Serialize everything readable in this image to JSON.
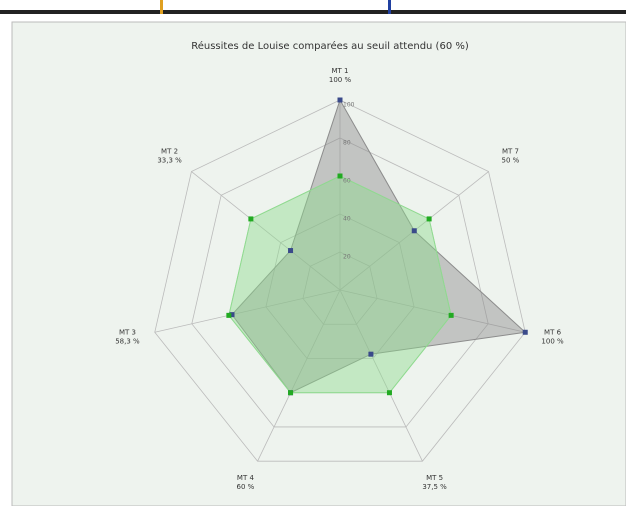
{
  "chart_data": {
    "type": "radar",
    "title": "Réussites de Louise comparées au seuil attendu (60 %)",
    "categories": [
      "MT 1",
      "MT 7",
      "MT 6",
      "MT 5",
      "MT 4",
      "MT 3",
      "MT 2"
    ],
    "series": [
      {
        "color": "#8c8c8c",
        "point_color": "#3a4a8a",
        "values": [
          100,
          50,
          100,
          37.5,
          60,
          58.3,
          33.3
        ],
        "value_labels": [
          "100 %",
          "50 %",
          "100 %",
          "37,5 %",
          "60 %",
          "58,3 %",
          "33,3 %"
        ]
      },
      {
        "color": "#8fdc8f",
        "point_color": "#22aa22",
        "values": [
          60,
          60,
          60,
          60,
          60,
          60,
          60
        ]
      }
    ],
    "rlim": [
      0,
      100
    ],
    "rticks": [
      20,
      40,
      60,
      80,
      100
    ],
    "grid": true
  }
}
